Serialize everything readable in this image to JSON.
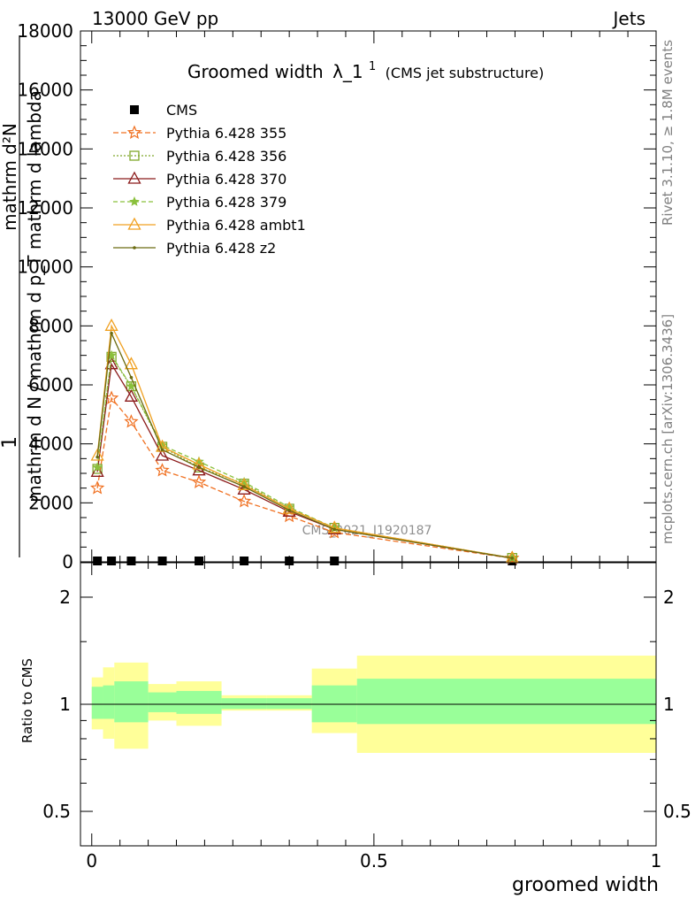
{
  "header": {
    "left": "13000 GeV pp",
    "right": "Jets"
  },
  "title_main": "Groomed width",
  "title_lambda": "λ_1",
  "title_sup": "1",
  "title_sub": "(CMS jet substructure)",
  "ylabel_numerator_frac": "1",
  "ylabel_numerator_inner": "mathrm d²N",
  "ylabel_denominator": "mathrm d N / mathrm d p_T mathrm d lambda",
  "ratio_ylabel": "Ratio to CMS",
  "xlabel": "groomed width",
  "side_label_1": "Rivet 3.1.10, ≥ 1.8M events",
  "side_label_2": "mcplots.cern.ch [arXiv:1306.3436]",
  "watermark": "CMS_2021_I1920187",
  "chart_data": {
    "type": "line",
    "x_edges": [
      0.0,
      0.02,
      0.04,
      0.1,
      0.15,
      0.23,
      0.31,
      0.39,
      0.47,
      1.0
    ],
    "x": [
      0.01,
      0.035,
      0.07,
      0.125,
      0.19,
      0.27,
      0.35,
      0.43,
      0.745
    ],
    "ylim": [
      0,
      18000
    ],
    "xlim": [
      -0.02,
      1.0
    ],
    "yticks": [
      0,
      2000,
      4000,
      6000,
      8000,
      10000,
      12000,
      14000,
      16000,
      18000
    ],
    "xticks": [
      0,
      0.5,
      1
    ],
    "xtick_labels": [
      "0",
      "0.5",
      "1"
    ],
    "legend_position": "top-left",
    "series": [
      {
        "name": "CMS",
        "color": "#000000",
        "marker": "square",
        "dash": "",
        "values": [
          0,
          0,
          0,
          0,
          0,
          0,
          0,
          0,
          0
        ]
      },
      {
        "name": "Pythia 6.428 355",
        "color": "#f07020",
        "marker": "star",
        "dash": "6,3",
        "values": [
          2500,
          5550,
          4750,
          3100,
          2700,
          2050,
          1550,
          1000,
          120
        ]
      },
      {
        "name": "Pythia 6.428 356",
        "color": "#7fa82a",
        "marker": "square-open",
        "dash": "2,2",
        "values": [
          3150,
          6950,
          5950,
          3900,
          3200,
          2650,
          1800,
          1150,
          130
        ]
      },
      {
        "name": "Pythia 6.428 370",
        "color": "#8b1a1a",
        "marker": "triangle-open",
        "dash": "",
        "values": [
          3050,
          6700,
          5600,
          3600,
          3100,
          2450,
          1700,
          1100,
          125
        ]
      },
      {
        "name": "Pythia 6.428 379",
        "color": "#8ac03c",
        "marker": "star-small",
        "dash": "5,3",
        "values": [
          3200,
          7000,
          5950,
          3950,
          3400,
          2700,
          1850,
          1150,
          130
        ]
      },
      {
        "name": "Pythia 6.428 ambt1",
        "color": "#f0a020",
        "marker": "triangle-open",
        "dash": "",
        "values": [
          3600,
          8000,
          6700,
          3900,
          3300,
          2600,
          1800,
          1150,
          130
        ]
      },
      {
        "name": "Pythia 6.428 z2",
        "color": "#6b6b10",
        "marker": "dot",
        "dash": "",
        "values": [
          3550,
          7750,
          6250,
          3800,
          3200,
          2550,
          1750,
          1100,
          125
        ]
      }
    ],
    "ratio": {
      "ylabel": "Ratio to CMS",
      "ylim_log": [
        0.4,
        2.5
      ],
      "yticks": [
        0.5,
        1,
        2
      ],
      "ytick_labels": [
        "0.5",
        "1",
        "2"
      ],
      "stat_band": [
        [
          0.91,
          1.12
        ],
        [
          0.91,
          1.13
        ],
        [
          0.89,
          1.16
        ],
        [
          0.95,
          1.08
        ],
        [
          0.94,
          1.09
        ],
        [
          0.97,
          1.04
        ],
        [
          0.97,
          1.04
        ],
        [
          0.89,
          1.13
        ],
        [
          0.88,
          1.18
        ]
      ],
      "total_band": [
        [
          0.85,
          1.19
        ],
        [
          0.8,
          1.27
        ],
        [
          0.75,
          1.31
        ],
        [
          0.9,
          1.14
        ],
        [
          0.87,
          1.16
        ],
        [
          0.96,
          1.06
        ],
        [
          0.96,
          1.06
        ],
        [
          0.83,
          1.26
        ],
        [
          0.73,
          1.37
        ]
      ]
    }
  }
}
